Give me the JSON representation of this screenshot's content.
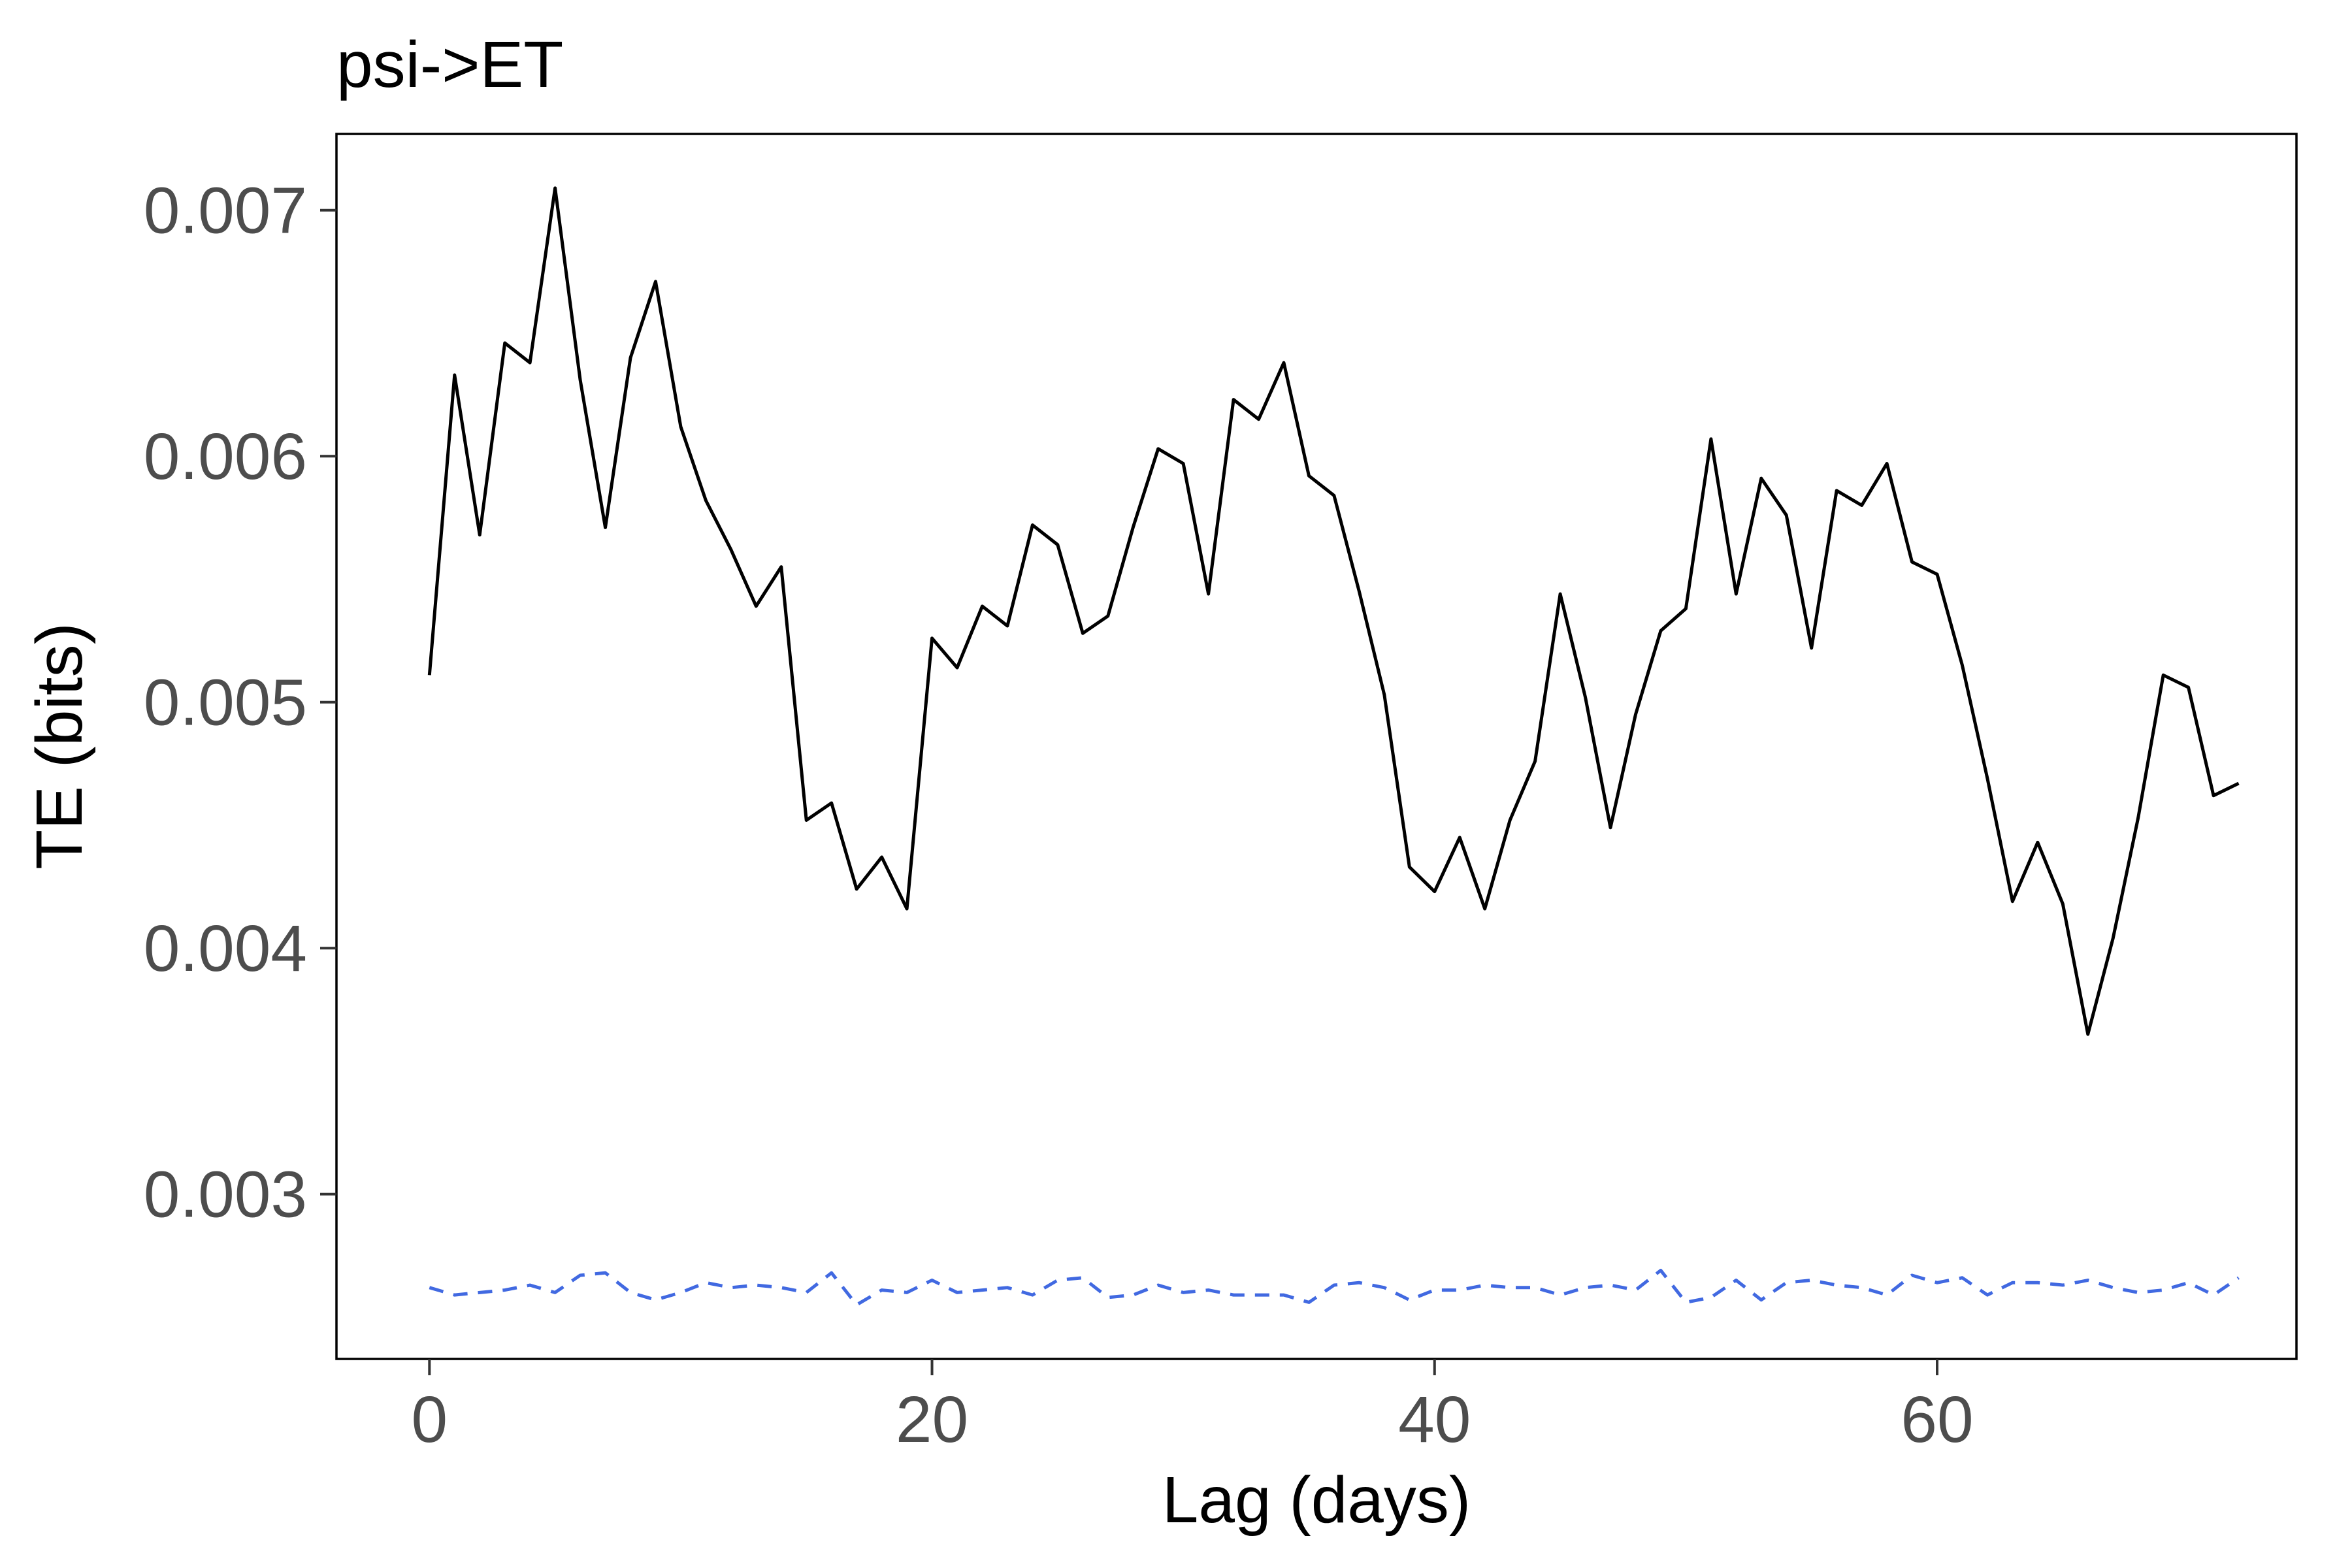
{
  "chart_data": {
    "type": "line",
    "title": "psi->ET",
    "xlabel": "Lag (days)",
    "ylabel": "TE (bits)",
    "xlim": [
      -3.7,
      74.3
    ],
    "ylim": [
      0.00233,
      0.00731
    ],
    "xticks": [
      0,
      20,
      40,
      60
    ],
    "xtick_labels": [
      "0",
      "20",
      "40",
      "60"
    ],
    "yticks": [
      0.003,
      0.004,
      0.005,
      0.006,
      0.007
    ],
    "ytick_labels": [
      "0.003",
      "0.004",
      "0.005",
      "0.006",
      "0.007"
    ],
    "grid": false,
    "legend": "none",
    "x": [
      0,
      1,
      2,
      3,
      4,
      5,
      6,
      7,
      8,
      9,
      10,
      11,
      12,
      13,
      14,
      15,
      16,
      17,
      18,
      19,
      20,
      21,
      22,
      23,
      24,
      25,
      26,
      27,
      28,
      29,
      30,
      31,
      32,
      33,
      34,
      35,
      36,
      37,
      38,
      39,
      40,
      41,
      42,
      43,
      44,
      45,
      46,
      47,
      48,
      49,
      50,
      51,
      52,
      53,
      54,
      55,
      56,
      57,
      58,
      59,
      60,
      61,
      62,
      63,
      64,
      65,
      66,
      67,
      68,
      69,
      70,
      71,
      72
    ],
    "series": [
      {
        "color": "#000000",
        "style": "solid",
        "values": [
          0.00511,
          0.00633,
          0.00568,
          0.00646,
          0.00638,
          0.00709,
          0.00631,
          0.00571,
          0.0064,
          0.00671,
          0.00612,
          0.00582,
          0.00562,
          0.00539,
          0.00555,
          0.00452,
          0.00459,
          0.00424,
          0.00437,
          0.00416,
          0.00526,
          0.00514,
          0.00539,
          0.00531,
          0.00572,
          0.00564,
          0.00528,
          0.00535,
          0.00571,
          0.00603,
          0.00597,
          0.00544,
          0.00623,
          0.00615,
          0.00638,
          0.00592,
          0.00584,
          0.00545,
          0.00503,
          0.00433,
          0.00423,
          0.00445,
          0.00416,
          0.00452,
          0.00476,
          0.00544,
          0.00502,
          0.00449,
          0.00495,
          0.00529,
          0.00538,
          0.00607,
          0.00544,
          0.00591,
          0.00576,
          0.00522,
          0.00586,
          0.0058,
          0.00597,
          0.00557,
          0.00552,
          0.00515,
          0.00469,
          0.00419,
          0.00443,
          0.00418,
          0.00365,
          0.00404,
          0.00453,
          0.00511,
          0.00506,
          0.00462,
          0.00467
        ]
      },
      {
        "color": "#4169e1",
        "style": "dashed",
        "values": [
          0.00262,
          0.00259,
          0.0026,
          0.00261,
          0.00263,
          0.0026,
          0.00267,
          0.00268,
          0.0026,
          0.00257,
          0.0026,
          0.00264,
          0.00262,
          0.00263,
          0.00262,
          0.0026,
          0.00268,
          0.00255,
          0.00261,
          0.0026,
          0.00265,
          0.0026,
          0.00261,
          0.00262,
          0.00259,
          0.00265,
          0.00266,
          0.00258,
          0.00259,
          0.00263,
          0.0026,
          0.00261,
          0.00259,
          0.00259,
          0.00259,
          0.00256,
          0.00263,
          0.00264,
          0.00262,
          0.00257,
          0.00261,
          0.00261,
          0.00263,
          0.00262,
          0.00262,
          0.00259,
          0.00262,
          0.00263,
          0.00261,
          0.00269,
          0.00256,
          0.00258,
          0.00265,
          0.00257,
          0.00264,
          0.00265,
          0.00263,
          0.00262,
          0.00259,
          0.00267,
          0.00264,
          0.00266,
          0.00259,
          0.00264,
          0.00264,
          0.00263,
          0.00265,
          0.00262,
          0.0026,
          0.00261,
          0.00264,
          0.00259,
          0.00266
        ]
      }
    ]
  }
}
